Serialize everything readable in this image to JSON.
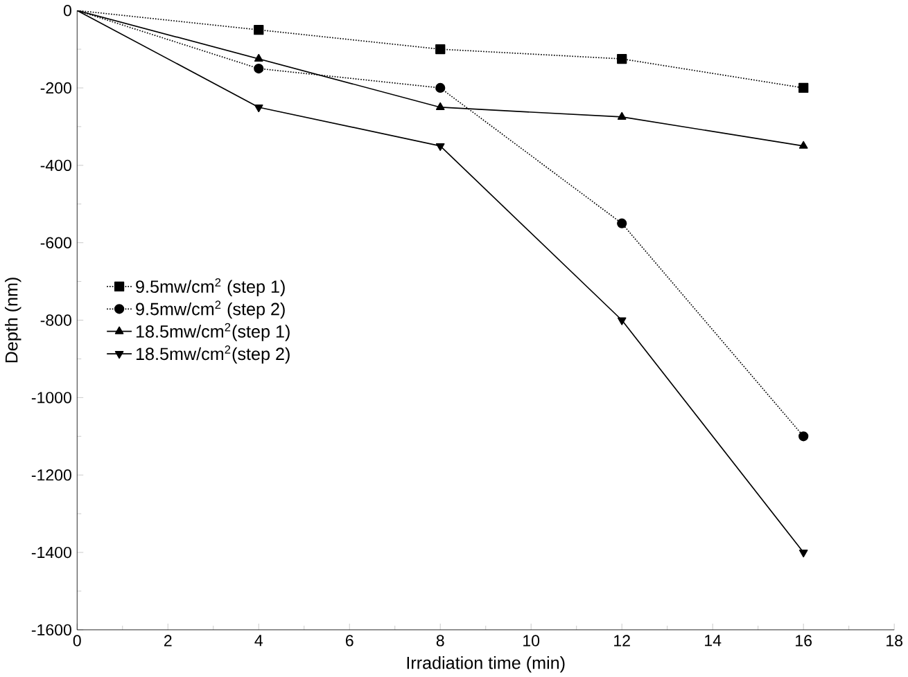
{
  "chart_data": {
    "type": "line",
    "xlabel": "Irradiation time (min)",
    "ylabel": "Depth (nm)",
    "xlim": [
      0,
      18
    ],
    "xticks": [
      0,
      2,
      4,
      6,
      8,
      10,
      12,
      14,
      16,
      18
    ],
    "ylim": [
      -1600,
      0
    ],
    "yticks": [
      -1600,
      -1400,
      -1200,
      -1000,
      -800,
      -600,
      -400,
      -200,
      0
    ],
    "x": [
      0,
      4,
      8,
      12,
      16
    ],
    "legend": "left",
    "grid": false,
    "series": [
      {
        "name": "9.5mw/cm$^{2}$ (step 1)",
        "color": "#000000",
        "marker": "square",
        "line_style": "dotted",
        "values": [
          0,
          -50,
          -100,
          -125,
          -200
        ]
      },
      {
        "name": "9.5mw/cm$^{2}$ (step 2)",
        "color": "#000000",
        "marker": "circle",
        "line_style": "dotted",
        "values": [
          0,
          -150,
          -200,
          -550,
          -1100
        ]
      },
      {
        "name": "18.5mw/cm$^{2}$(step 1)",
        "color": "#000000",
        "marker": "triangle",
        "line_style": "solid",
        "values": [
          0,
          -125,
          -250,
          -275,
          -350
        ]
      },
      {
        "name": "18.5mw/cm$^{2}$(step 2)",
        "color": "#000000",
        "marker": "triangle-down",
        "line_style": "solid",
        "values": [
          0,
          -250,
          -350,
          -800,
          -1400
        ]
      }
    ]
  }
}
